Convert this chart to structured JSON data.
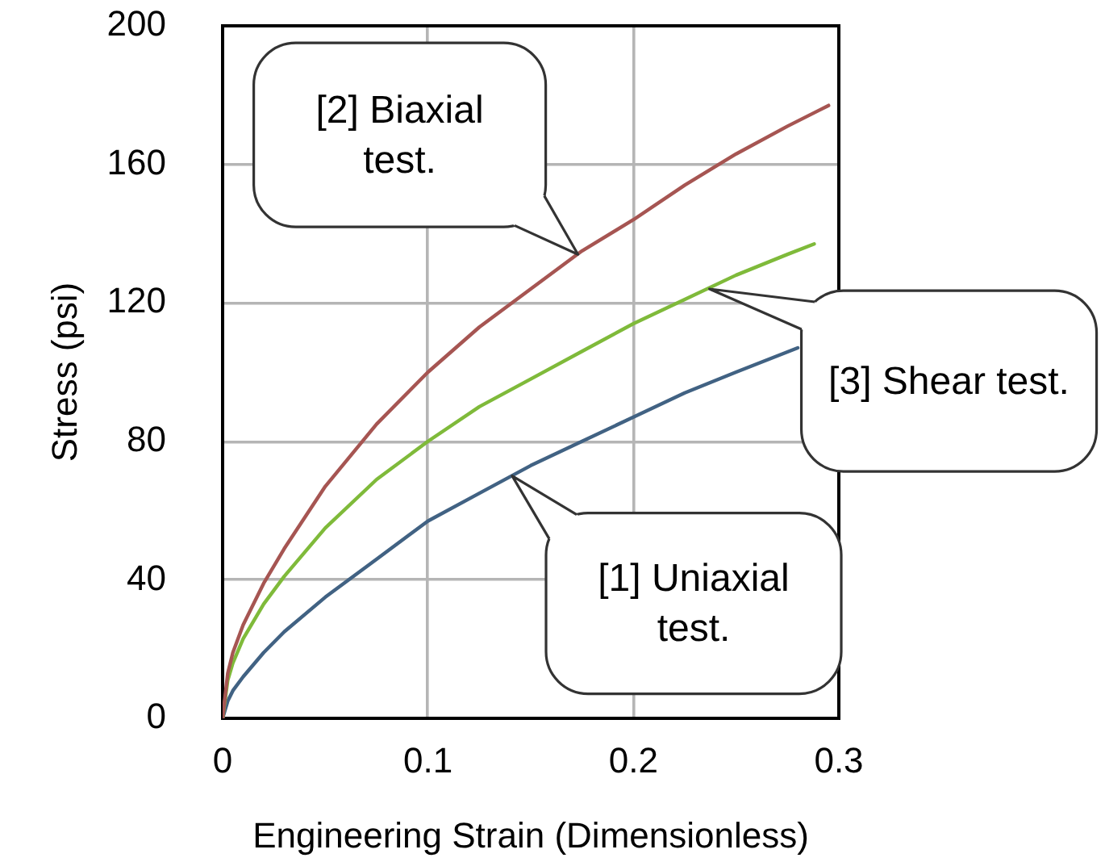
{
  "chart_data": {
    "type": "line",
    "xlabel": "Engineering Strain (Dimensionless)",
    "ylabel": "Stress (psi)",
    "xlim": [
      0,
      0.3
    ],
    "xticks": [
      0,
      0.1,
      0.2,
      0.3
    ],
    "ylim": [
      0,
      200
    ],
    "yticks": [
      0,
      40,
      80,
      120,
      160,
      200
    ],
    "grid": true,
    "marker": "none",
    "line_style": "solid",
    "series": [
      {
        "color": "#a65552",
        "x": [
          0,
          0.0025,
          0.005,
          0.01,
          0.02,
          0.03,
          0.05,
          0.075,
          0.1,
          0.125,
          0.15,
          0.175,
          0.2,
          0.225,
          0.25,
          0.275,
          0.295
        ],
        "values": [
          0,
          13,
          19,
          27,
          39,
          49,
          67,
          85,
          100,
          113,
          124,
          135,
          144,
          154,
          163,
          171,
          177
        ]
      },
      {
        "color": "#7fba3a",
        "x": [
          0,
          0.0025,
          0.005,
          0.01,
          0.02,
          0.03,
          0.05,
          0.075,
          0.1,
          0.125,
          0.15,
          0.175,
          0.2,
          0.225,
          0.25,
          0.275,
          0.288
        ],
        "values": [
          0,
          11,
          16,
          23,
          33,
          41,
          55,
          69,
          80,
          90,
          98,
          106,
          114,
          121,
          128,
          134,
          137
        ]
      },
      {
        "color": "#416283",
        "x": [
          0,
          0.0025,
          0.005,
          0.01,
          0.02,
          0.03,
          0.05,
          0.075,
          0.1,
          0.125,
          0.15,
          0.175,
          0.2,
          0.225,
          0.25,
          0.28
        ],
        "values": [
          0,
          5,
          8,
          12,
          19,
          25,
          35,
          46,
          57,
          65,
          73,
          80,
          87,
          94,
          100,
          107
        ]
      }
    ],
    "annotations": [
      "[2] Biaxial test.",
      {
        "text": "[3] Shear test.",
        "x": 0.237,
        "y": 124
      },
      "[1] Uniaxial test."
    ]
  }
}
